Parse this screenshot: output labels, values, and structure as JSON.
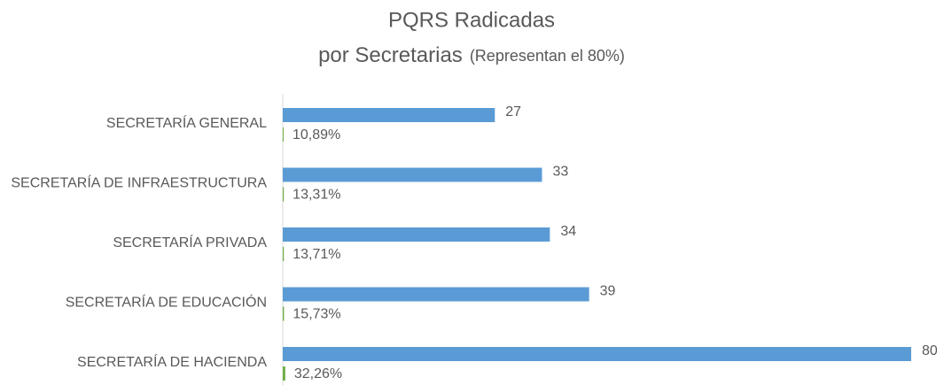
{
  "chart_data": {
    "type": "hbar",
    "title": "PQRS Radicadas",
    "subtitle": "por Secretarias",
    "subtitle_note": "(Representan el 80%)",
    "categories": [
      "SECRETARÍA GENERAL",
      "SECRETARÍA DE INFRAESTRUCTURA",
      "SECRETARÍA PRIVADA",
      "SECRETARÍA DE EDUCACIÓN",
      "SECRETARÍA DE HACIENDA"
    ],
    "series": [
      {
        "color": "#5b9bd5",
        "values": [
          27,
          33,
          34,
          39,
          80
        ]
      },
      {
        "color": "#70ad47",
        "values": [
          0.1089,
          0.1331,
          0.1371,
          0.1573,
          0.3226
        ],
        "value_labels": [
          "10,89%",
          "13,31%",
          "13,71%",
          "15,73%",
          "32,26%"
        ]
      }
    ],
    "xlim": [
      0,
      80
    ]
  }
}
